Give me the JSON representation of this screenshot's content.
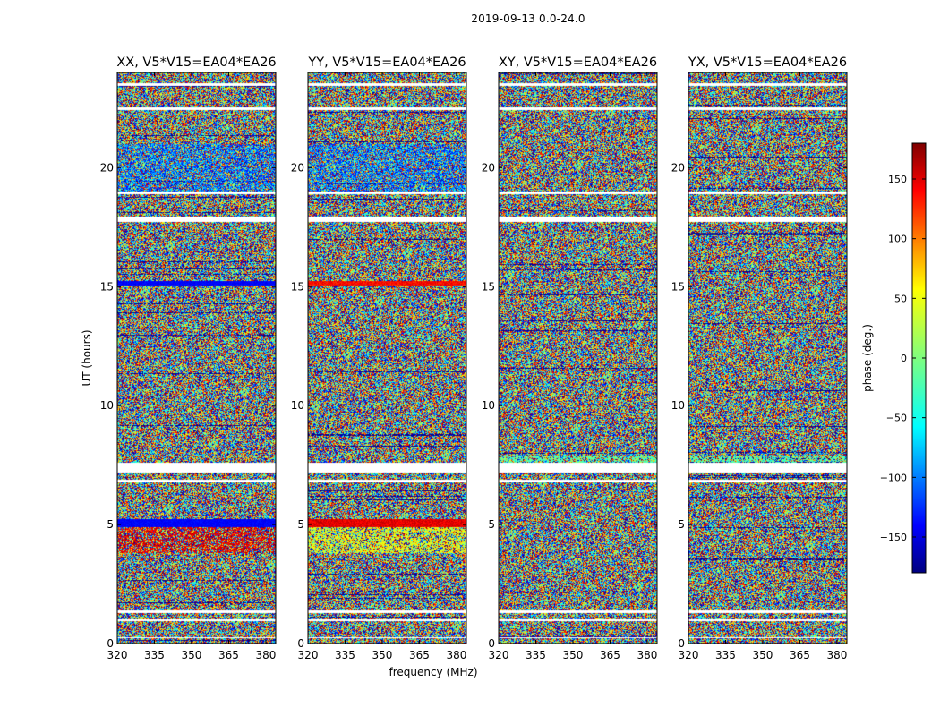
{
  "figure": {
    "suptitle": "2019-09-13 0.0-24.0",
    "colorbar_label": "phase (deg.)",
    "colormap": "jet"
  },
  "chart_data": {
    "type": "heatmap",
    "xlabel": "frequency (MHz)",
    "ylabel": "UT (hours)",
    "xlim": [
      320,
      384
    ],
    "ylim": [
      0,
      24
    ],
    "x_ticks": [
      "320",
      "335",
      "350",
      "365",
      "380"
    ],
    "y_ticks": [
      "0",
      "5",
      "10",
      "15",
      "20"
    ],
    "colorbar": {
      "label": "phase (deg.)",
      "range": [
        -180,
        180
      ],
      "ticks": [
        "−150",
        "−100",
        "−50",
        "0",
        "50",
        "100",
        "150"
      ]
    },
    "panels": [
      {
        "title": "XX, V5*V15=EA04*EA26",
        "polarization": "XX"
      },
      {
        "title": "YY, V5*V15=EA04*EA26",
        "polarization": "YY"
      },
      {
        "title": "XY, V5*V15=EA04*EA26",
        "polarization": "XY"
      },
      {
        "title": "YX, V5*V15=EA04*EA26",
        "polarization": "YX"
      }
    ],
    "flagged_ut_hours": [
      [
        0.25,
        0.3
      ],
      [
        0.95,
        1.05
      ],
      [
        1.3,
        1.4
      ],
      [
        6.8,
        6.9
      ],
      [
        7.2,
        7.6
      ],
      [
        17.75,
        17.95
      ],
      [
        18.9,
        19.0
      ],
      [
        22.45,
        22.55
      ],
      [
        23.45,
        23.55
      ]
    ]
  }
}
